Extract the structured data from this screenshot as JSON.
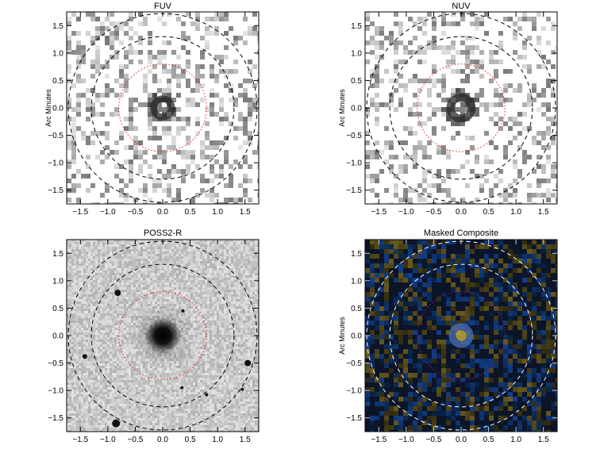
{
  "figure": {
    "panels": [
      {
        "id": "fuv",
        "title": "FUV",
        "ylabel": "Arc Minutes",
        "image_style": "sparse-gray",
        "source": {
          "core_radius": 0.22,
          "ring_radius": 0.22
        }
      },
      {
        "id": "nuv",
        "title": "NUV",
        "ylabel": "Arc Minutes",
        "image_style": "sparse-gray",
        "source": {
          "core_radius": 0.26,
          "ring_radius": 0.26
        }
      },
      {
        "id": "poss2r",
        "title": "POSS2-R",
        "ylabel": "",
        "image_style": "dense-gray",
        "source": {
          "core_radius": 0.33,
          "ring_radius": 0
        }
      },
      {
        "id": "composite",
        "title": "Masked Composite",
        "ylabel": "Arc Minutes",
        "image_style": "color-composite",
        "source": {
          "core_radius": 0.22,
          "ring_radius": 0.22
        }
      }
    ],
    "axes": {
      "xlim": [
        -1.75,
        1.75
      ],
      "ylim": [
        -1.75,
        1.75
      ],
      "xticks": [
        -1.5,
        -1.0,
        -0.5,
        0.0,
        0.5,
        1.0,
        1.5
      ],
      "yticks": [
        -1.5,
        -1.0,
        -0.5,
        0.0,
        0.5,
        1.0,
        1.5
      ],
      "xtick_labels": [
        "−1.5",
        "−1.0",
        "−0.5",
        "0.0",
        "0.5",
        "1.0",
        "1.5"
      ],
      "ytick_labels": [
        "−1.5",
        "−1.0",
        "−0.5",
        "0.0",
        "0.5",
        "1.0",
        "1.5"
      ]
    },
    "apertures": [
      {
        "name": "red",
        "radius_arcmin": 0.8,
        "color": "#e0201e",
        "dash": "dot"
      },
      {
        "name": "inner-black",
        "radius_arcmin": 1.3,
        "color": "#000000",
        "dash": "dash"
      },
      {
        "name": "outer-black",
        "radius_arcmin": 1.72,
        "color": "#000000",
        "dash": "dash"
      }
    ],
    "colors": {
      "background": "#ffffff",
      "red_aperture": "#e0201e",
      "composite_aperture": "#ffffff",
      "composite_inner": "#a01888",
      "composite_bg": "#0c1428",
      "uv_blue": "#4a6fb8",
      "optical_yellow": "#c8b040"
    }
  }
}
